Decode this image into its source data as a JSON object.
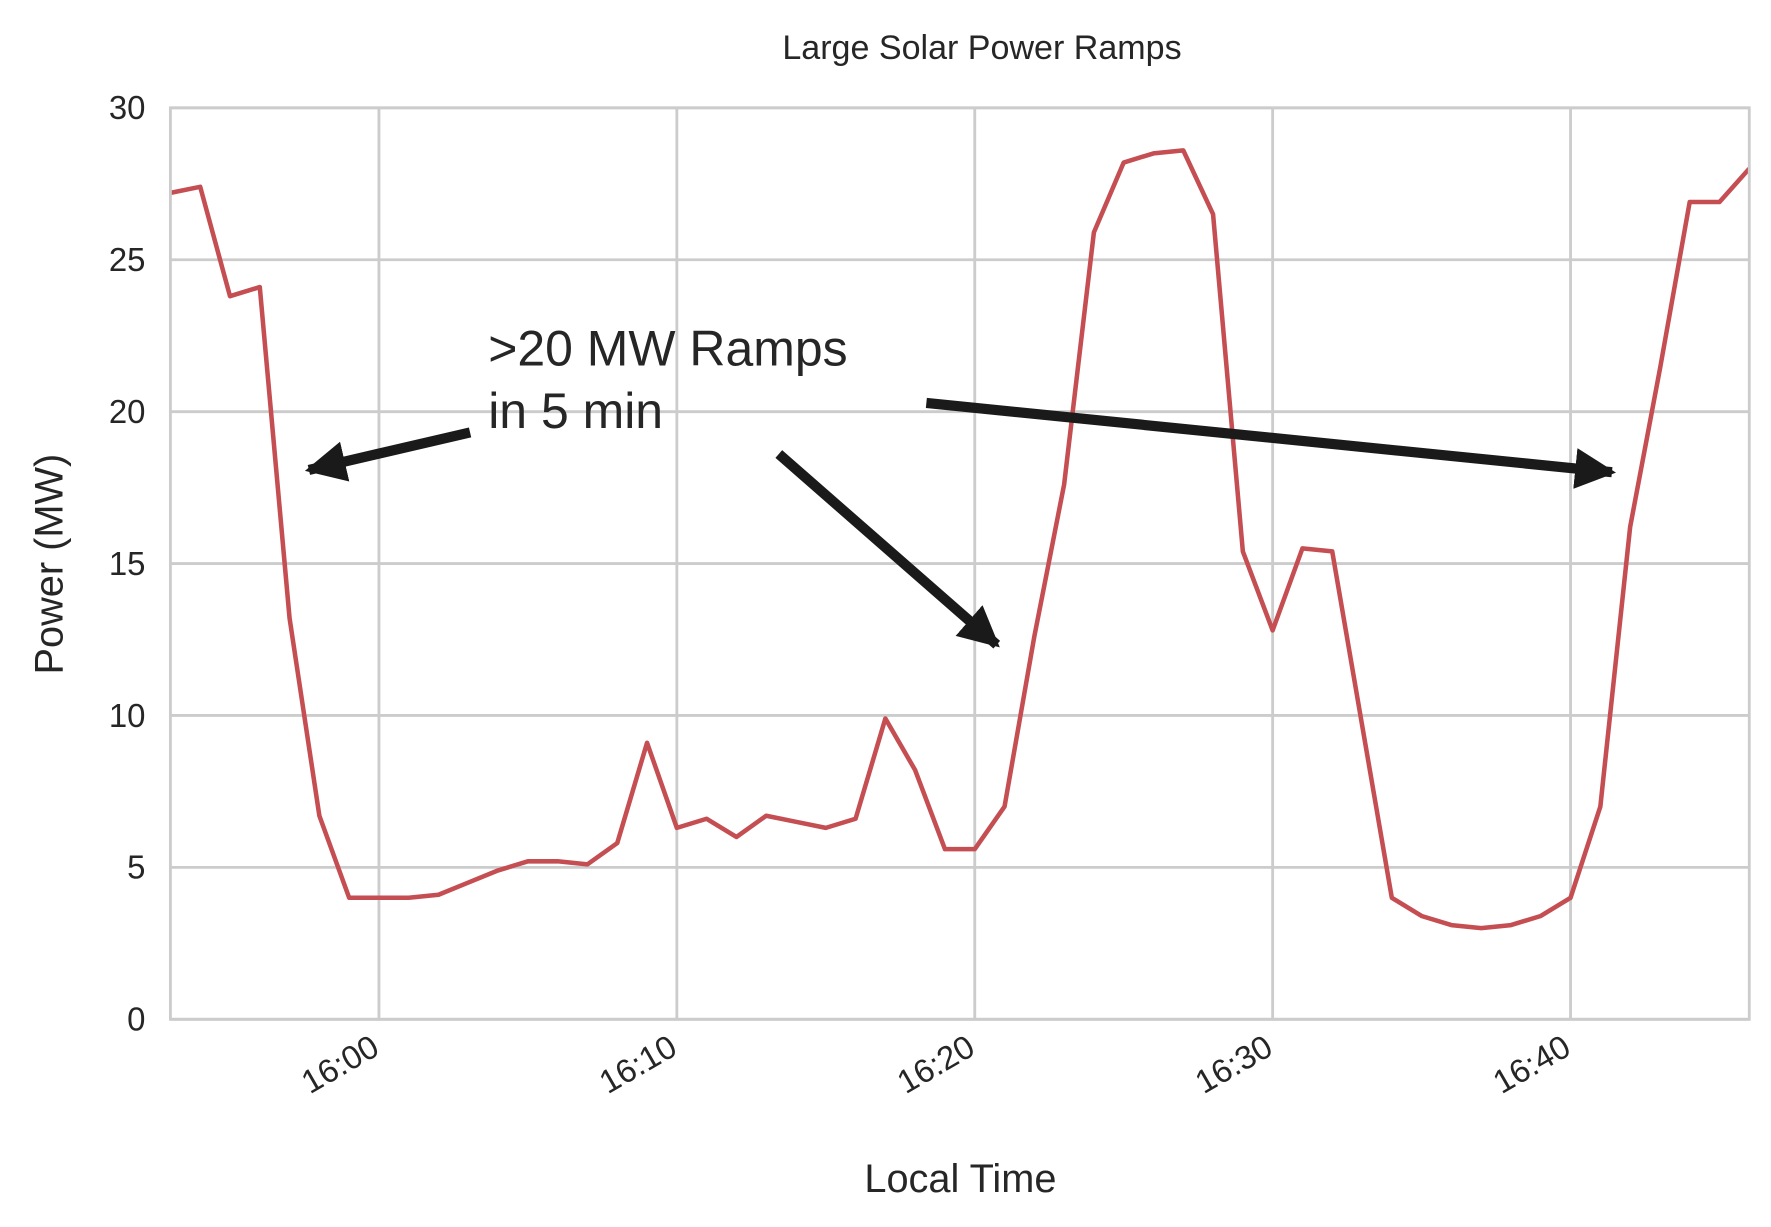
{
  "chart_data": {
    "type": "line",
    "title": "Large Solar Power Ramps",
    "xlabel": "Local Time",
    "ylabel": "Power (MW)",
    "x": [
      "15:53",
      "15:54",
      "15:55",
      "15:56",
      "15:57",
      "15:58",
      "15:59",
      "16:00",
      "16:01",
      "16:02",
      "16:03",
      "16:04",
      "16:05",
      "16:06",
      "16:07",
      "16:08",
      "16:09",
      "16:10",
      "16:11",
      "16:12",
      "16:13",
      "16:14",
      "16:15",
      "16:16",
      "16:17",
      "16:18",
      "16:19",
      "16:20",
      "16:21",
      "16:22",
      "16:23",
      "16:24",
      "16:25",
      "16:26",
      "16:27",
      "16:28",
      "16:29",
      "16:30",
      "16:31",
      "16:32",
      "16:33",
      "16:34",
      "16:35",
      "16:36",
      "16:37",
      "16:38",
      "16:39",
      "16:40",
      "16:41",
      "16:42",
      "16:43",
      "16:44",
      "16:45",
      "16:46"
    ],
    "series": [
      {
        "name": "Power",
        "color": "#c44e52",
        "values": [
          27.2,
          27.4,
          23.8,
          24.1,
          13.2,
          6.7,
          4.0,
          4.0,
          4.0,
          4.1,
          4.5,
          4.9,
          5.2,
          5.2,
          5.1,
          5.8,
          9.1,
          6.3,
          6.6,
          6.0,
          6.7,
          6.5,
          6.3,
          6.6,
          9.9,
          8.2,
          5.6,
          5.6,
          7.0,
          12.6,
          17.6,
          25.9,
          28.2,
          28.5,
          28.6,
          26.5,
          15.4,
          12.8,
          15.5,
          15.4,
          9.7,
          4.0,
          3.4,
          3.1,
          3.0,
          3.1,
          3.4,
          4.0,
          7.0,
          16.2,
          21.4,
          26.9,
          26.9,
          28.0
        ]
      }
    ],
    "xlim": [
      "15:53",
      "16:46"
    ],
    "xticks": [
      "16:00",
      "16:10",
      "16:20",
      "16:30",
      "16:40"
    ],
    "ylim": [
      0,
      30
    ],
    "yticks": [
      0,
      5,
      10,
      15,
      20,
      25,
      30
    ],
    "grid": true,
    "annotation": [
      ">20 MW Ramps",
      "in 5 min"
    ]
  }
}
